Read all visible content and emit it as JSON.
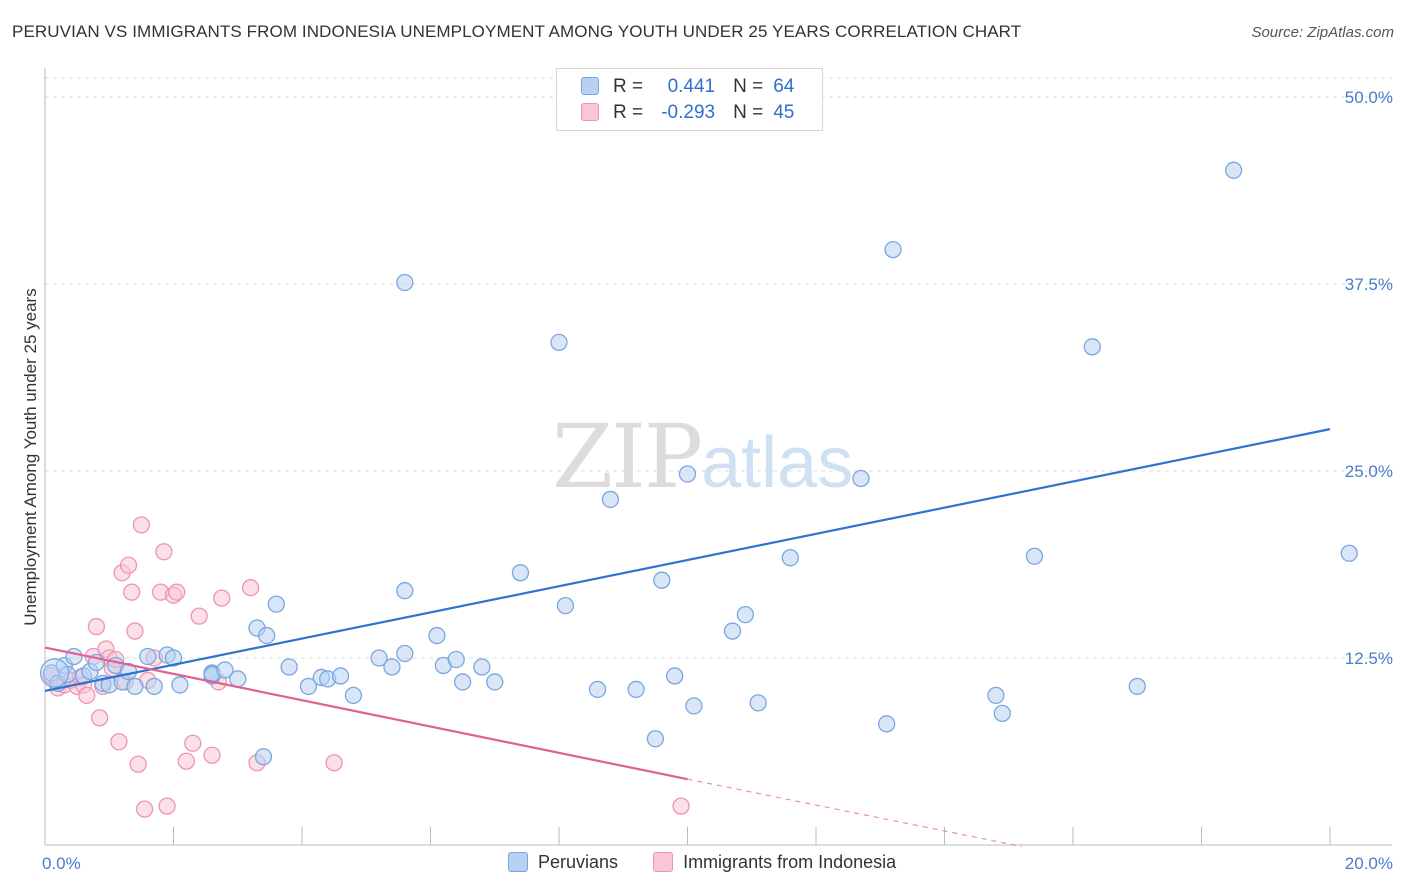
{
  "title": "PERUVIAN VS IMMIGRANTS FROM INDONESIA UNEMPLOYMENT AMONG YOUTH UNDER 25 YEARS CORRELATION CHART",
  "source": "Source: ZipAtlas.com",
  "watermark": {
    "zip": "ZIP",
    "atlas": "atlas"
  },
  "legend_top": [
    {
      "r_label": "R =",
      "r_value": "0.441",
      "n_label": "N =",
      "n_value": "64"
    },
    {
      "r_label": "R =",
      "r_value": "-0.293",
      "n_label": "N =",
      "n_value": "45"
    }
  ],
  "legend_bottom": [
    "Peruvians",
    "Immigrants from Indonesia"
  ],
  "colors": {
    "blue_fill": "#b8d1f3",
    "blue_stroke": "#7aa6e0",
    "blue_line": "#2f73d1",
    "pink_fill": "#f9c6d6",
    "pink_stroke": "#ee94b3",
    "pink_line": "#e0608f",
    "grid": "#dcdcdc"
  },
  "chart_data": {
    "type": "scatter",
    "title": "PERUVIAN VS IMMIGRANTS FROM INDONESIA UNEMPLOYMENT AMONG YOUTH UNDER 25 YEARS CORRELATION CHART",
    "xlabel": "",
    "ylabel": "Unemployment Among Youth under 25 years",
    "xlim": [
      0,
      20
    ],
    "ylim": [
      0,
      50
    ],
    "x_tick_labels": [
      "0.0%",
      "20.0%"
    ],
    "y_ticks": [
      12.5,
      25.0,
      37.5,
      50.0
    ],
    "y_tick_labels": [
      "12.5%",
      "25.0%",
      "37.5%",
      "50.0%"
    ],
    "grid": true,
    "legend_position": "top-center",
    "series": [
      {
        "name": "Peruvians",
        "r": 0.441,
        "n": 64,
        "trend": {
          "x": [
            0.0,
            20.0
          ],
          "y": [
            10.3,
            27.8
          ]
        },
        "points": [
          [
            0.1,
            11.5
          ],
          [
            0.2,
            10.8
          ],
          [
            0.3,
            12.0
          ],
          [
            0.35,
            11.4
          ],
          [
            0.45,
            12.6
          ],
          [
            0.6,
            11.3
          ],
          [
            0.7,
            11.6
          ],
          [
            0.8,
            12.2
          ],
          [
            0.9,
            10.8
          ],
          [
            1.0,
            10.7
          ],
          [
            1.1,
            12.0
          ],
          [
            1.2,
            10.9
          ],
          [
            1.3,
            11.6
          ],
          [
            1.4,
            10.6
          ],
          [
            1.6,
            12.6
          ],
          [
            1.7,
            10.6
          ],
          [
            1.9,
            12.7
          ],
          [
            2.0,
            12.5
          ],
          [
            2.1,
            10.7
          ],
          [
            2.6,
            11.3
          ],
          [
            2.6,
            11.5
          ],
          [
            2.6,
            11.4
          ],
          [
            2.8,
            11.7
          ],
          [
            3.0,
            11.1
          ],
          [
            3.3,
            14.5
          ],
          [
            3.45,
            14.0
          ],
          [
            3.6,
            16.1
          ],
          [
            3.8,
            11.9
          ],
          [
            4.1,
            10.6
          ],
          [
            4.3,
            11.2
          ],
          [
            4.4,
            11.1
          ],
          [
            4.6,
            11.3
          ],
          [
            4.8,
            10.0
          ],
          [
            5.2,
            12.5
          ],
          [
            5.4,
            11.9
          ],
          [
            5.6,
            12.8
          ],
          [
            5.6,
            17.0
          ],
          [
            6.1,
            14.0
          ],
          [
            6.2,
            12.0
          ],
          [
            6.4,
            12.4
          ],
          [
            6.5,
            10.9
          ],
          [
            6.8,
            11.9
          ],
          [
            7.0,
            10.9
          ],
          [
            5.6,
            37.6
          ],
          [
            3.4,
            5.9
          ],
          [
            7.4,
            18.2
          ],
          [
            8.0,
            33.6
          ],
          [
            8.1,
            16.0
          ],
          [
            8.6,
            10.4
          ],
          [
            8.8,
            23.1
          ],
          [
            9.2,
            10.4
          ],
          [
            9.5,
            7.1
          ],
          [
            9.6,
            17.7
          ],
          [
            9.8,
            11.3
          ],
          [
            10.0,
            24.8
          ],
          [
            10.1,
            9.3
          ],
          [
            10.7,
            14.3
          ],
          [
            10.9,
            15.4
          ],
          [
            11.1,
            9.5
          ],
          [
            11.6,
            19.2
          ],
          [
            12.7,
            24.5
          ],
          [
            13.1,
            8.1
          ],
          [
            13.2,
            39.8
          ],
          [
            14.8,
            10.0
          ],
          [
            14.9,
            8.8
          ],
          [
            15.4,
            19.3
          ],
          [
            16.3,
            33.3
          ],
          [
            17.0,
            10.6
          ],
          [
            18.5,
            45.1
          ],
          [
            20.3,
            19.5
          ]
        ]
      },
      {
        "name": "Immigrants from Indonesia",
        "r": -0.293,
        "n": 45,
        "trend": {
          "x": [
            0.0,
            10.0
          ],
          "y": [
            13.2,
            4.4
          ]
        },
        "trend_dashed": {
          "x": [
            10.0,
            15.2
          ],
          "y": [
            4.4,
            -0.1
          ]
        },
        "points": [
          [
            0.1,
            11.3
          ],
          [
            0.2,
            10.5
          ],
          [
            0.3,
            10.7
          ],
          [
            0.4,
            11.0
          ],
          [
            0.5,
            10.6
          ],
          [
            0.55,
            11.2
          ],
          [
            0.6,
            10.7
          ],
          [
            0.65,
            10.0
          ],
          [
            0.75,
            12.6
          ],
          [
            0.8,
            14.6
          ],
          [
            0.85,
            8.5
          ],
          [
            0.9,
            10.6
          ],
          [
            0.95,
            13.1
          ],
          [
            1.0,
            12.5
          ],
          [
            1.05,
            11.8
          ],
          [
            1.1,
            12.4
          ],
          [
            1.15,
            6.9
          ],
          [
            1.2,
            18.2
          ],
          [
            1.25,
            10.9
          ],
          [
            1.3,
            18.7
          ],
          [
            1.35,
            16.9
          ],
          [
            1.4,
            14.3
          ],
          [
            1.45,
            5.4
          ],
          [
            1.5,
            21.4
          ],
          [
            1.55,
            2.4
          ],
          [
            1.6,
            11.0
          ],
          [
            1.7,
            12.5
          ],
          [
            1.8,
            16.9
          ],
          [
            1.85,
            19.6
          ],
          [
            1.9,
            2.6
          ],
          [
            2.0,
            16.7
          ],
          [
            2.05,
            16.9
          ],
          [
            2.2,
            5.6
          ],
          [
            2.3,
            6.8
          ],
          [
            2.4,
            15.3
          ],
          [
            2.6,
            6.0
          ],
          [
            2.7,
            10.9
          ],
          [
            2.75,
            16.5
          ],
          [
            3.2,
            17.2
          ],
          [
            3.3,
            5.5
          ],
          [
            4.5,
            5.5
          ],
          [
            9.9,
            2.6
          ]
        ]
      }
    ]
  }
}
